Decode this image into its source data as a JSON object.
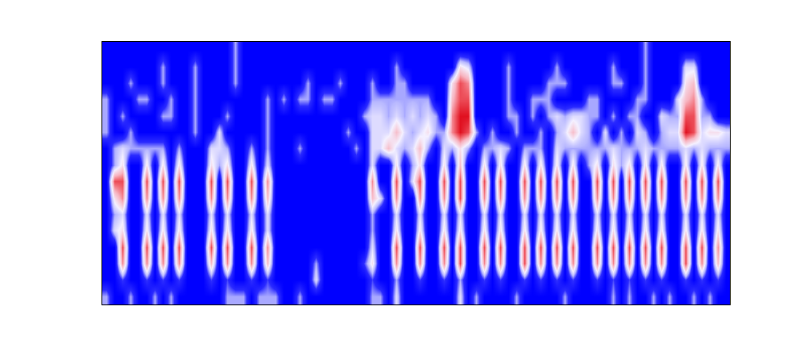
{
  "chart_data": {
    "type": "heatmap",
    "xlim": [
      0,
      78
    ],
    "ylim": [
      0,
      16
    ],
    "tick_labels": false,
    "grid": false,
    "color_range": [
      0,
      9
    ],
    "cells": [
      [
        3,
        0,
        0,
        3,
        0,
        0,
        3,
        0,
        3,
        0,
        0,
        0,
        0,
        0,
        0,
        3,
        3,
        3,
        0,
        3,
        3,
        3,
        0,
        0,
        3,
        0,
        0,
        0,
        0,
        0,
        0,
        0,
        0,
        3,
        3,
        0,
        4,
        0,
        0,
        0,
        0,
        0,
        0,
        0,
        4,
        0,
        3,
        0,
        0,
        0,
        0,
        3,
        0,
        0,
        0,
        0,
        0,
        3,
        0,
        0,
        0,
        0,
        0,
        3,
        0,
        3,
        0,
        0,
        3,
        0,
        3,
        0,
        0,
        3,
        0,
        3,
        0,
        0
      ],
      [
        0,
        0,
        2,
        0,
        0,
        2,
        0,
        2,
        0,
        2,
        0,
        0,
        0,
        2,
        0,
        2,
        0,
        0,
        2,
        0,
        2,
        0,
        0,
        0,
        0,
        0,
        4,
        0,
        0,
        0,
        0,
        0,
        0,
        2,
        0,
        0,
        3,
        0,
        0,
        2,
        0,
        0,
        2,
        0,
        3,
        0,
        0,
        2,
        0,
        2,
        0,
        0,
        2,
        0,
        2,
        0,
        2,
        0,
        2,
        0,
        0,
        2,
        0,
        2,
        0,
        2,
        0,
        2,
        0,
        2,
        0,
        0,
        2,
        0,
        2,
        0,
        2,
        0
      ],
      [
        0,
        0,
        7,
        0,
        0,
        7,
        0,
        7,
        0,
        7,
        0,
        0,
        0,
        6,
        0,
        7,
        0,
        0,
        7,
        0,
        6,
        0,
        0,
        0,
        0,
        0,
        3,
        0,
        0,
        0,
        0,
        0,
        2,
        5,
        0,
        0,
        7,
        0,
        0,
        7,
        0,
        0,
        7,
        0,
        8,
        0,
        0,
        7,
        0,
        7,
        0,
        0,
        8,
        0,
        7,
        0,
        7,
        0,
        7,
        0,
        0,
        7,
        0,
        7,
        0,
        7,
        0,
        7,
        0,
        7,
        0,
        0,
        8,
        0,
        7,
        0,
        6,
        0
      ],
      [
        0,
        0,
        8,
        0,
        0,
        8,
        0,
        8,
        0,
        8,
        0,
        0,
        0,
        8,
        0,
        8,
        0,
        0,
        8,
        0,
        7,
        0,
        0,
        0,
        0,
        0,
        0,
        0,
        0,
        0,
        0,
        0,
        0,
        4,
        0,
        0,
        8,
        0,
        0,
        8,
        0,
        0,
        8,
        0,
        8,
        0,
        0,
        8,
        0,
        8,
        0,
        0,
        8,
        0,
        8,
        0,
        8,
        0,
        8,
        0,
        0,
        8,
        0,
        8,
        0,
        8,
        0,
        8,
        0,
        8,
        0,
        0,
        8,
        0,
        8,
        0,
        7,
        0
      ],
      [
        0,
        4,
        5,
        0,
        0,
        5,
        0,
        5,
        0,
        5,
        0,
        0,
        0,
        5,
        0,
        5,
        0,
        0,
        5,
        0,
        4,
        0,
        0,
        0,
        0,
        0,
        0,
        0,
        0,
        0,
        0,
        0,
        0,
        3,
        0,
        0,
        5,
        0,
        0,
        5,
        0,
        0,
        5,
        0,
        5,
        0,
        0,
        5,
        0,
        5,
        0,
        0,
        5,
        0,
        5,
        0,
        5,
        0,
        5,
        0,
        0,
        5,
        0,
        5,
        0,
        5,
        0,
        5,
        0,
        5,
        0,
        0,
        5,
        0,
        5,
        0,
        5,
        0
      ],
      [
        0,
        3,
        4,
        0,
        0,
        4,
        0,
        4,
        0,
        4,
        0,
        0,
        0,
        4,
        0,
        4,
        0,
        0,
        4,
        0,
        4,
        0,
        0,
        0,
        0,
        0,
        0,
        0,
        0,
        0,
        0,
        0,
        0,
        3,
        0,
        0,
        4,
        0,
        0,
        4,
        0,
        0,
        4,
        0,
        4,
        0,
        0,
        4,
        0,
        4,
        0,
        0,
        4,
        0,
        4,
        0,
        4,
        0,
        4,
        0,
        0,
        4,
        0,
        4,
        0,
        4,
        0,
        4,
        0,
        4,
        0,
        0,
        4,
        0,
        4,
        0,
        4,
        0
      ],
      [
        0,
        5,
        7,
        0,
        0,
        7,
        0,
        7,
        0,
        7,
        0,
        0,
        0,
        7,
        0,
        7,
        0,
        0,
        7,
        0,
        6,
        0,
        0,
        0,
        0,
        0,
        0,
        0,
        0,
        0,
        0,
        0,
        0,
        6,
        4,
        0,
        7,
        0,
        0,
        7,
        0,
        0,
        7,
        0,
        8,
        0,
        0,
        7,
        0,
        7,
        0,
        0,
        7,
        0,
        7,
        0,
        7,
        0,
        7,
        0,
        0,
        7,
        0,
        7,
        0,
        7,
        0,
        7,
        0,
        7,
        0,
        0,
        7,
        0,
        7,
        0,
        7,
        0
      ],
      [
        0,
        8,
        8,
        0,
        0,
        8,
        0,
        8,
        0,
        8,
        0,
        0,
        0,
        8,
        0,
        8,
        0,
        0,
        8,
        0,
        7,
        0,
        0,
        0,
        0,
        0,
        0,
        0,
        0,
        0,
        0,
        0,
        0,
        7,
        0,
        0,
        8,
        0,
        4,
        8,
        0,
        0,
        8,
        0,
        8,
        0,
        0,
        8,
        0,
        8,
        0,
        0,
        8,
        0,
        8,
        0,
        8,
        0,
        8,
        0,
        0,
        8,
        0,
        8,
        0,
        8,
        0,
        8,
        0,
        8,
        0,
        0,
        8,
        0,
        8,
        0,
        8,
        0
      ],
      [
        0,
        3,
        5,
        0,
        0,
        5,
        0,
        5,
        0,
        5,
        0,
        0,
        0,
        5,
        3,
        5,
        0,
        0,
        5,
        0,
        4,
        0,
        0,
        0,
        0,
        0,
        0,
        0,
        0,
        0,
        0,
        0,
        0,
        4,
        0,
        0,
        5,
        0,
        3,
        5,
        0,
        0,
        5,
        0,
        6,
        0,
        0,
        5,
        0,
        5,
        0,
        0,
        5,
        0,
        5,
        0,
        5,
        0,
        5,
        0,
        3,
        5,
        0,
        5,
        3,
        5,
        0,
        5,
        0,
        5,
        0,
        0,
        5,
        0,
        5,
        0,
        5,
        0
      ],
      [
        0,
        3,
        4,
        3,
        3,
        3,
        3,
        3,
        0,
        3,
        0,
        0,
        0,
        4,
        4,
        3,
        0,
        0,
        3,
        0,
        3,
        0,
        0,
        0,
        3,
        0,
        0,
        0,
        0,
        0,
        0,
        3,
        0,
        4,
        4,
        6,
        4,
        3,
        4,
        6,
        3,
        0,
        4,
        3,
        5,
        3,
        0,
        3,
        3,
        4,
        3,
        0,
        3,
        3,
        3,
        0,
        4,
        3,
        3,
        3,
        3,
        3,
        3,
        4,
        3,
        3,
        3,
        4,
        3,
        3,
        3,
        3,
        4,
        3,
        4,
        3,
        3,
        3
      ],
      [
        3,
        0,
        0,
        3,
        0,
        0,
        0,
        0,
        0,
        0,
        0,
        3,
        0,
        0,
        4,
        0,
        0,
        0,
        0,
        0,
        3,
        0,
        0,
        0,
        0,
        0,
        0,
        0,
        0,
        0,
        3,
        0,
        0,
        4,
        4,
        4,
        6,
        4,
        3,
        4,
        5,
        3,
        3,
        7,
        9,
        8,
        3,
        0,
        3,
        0,
        0,
        3,
        0,
        0,
        3,
        0,
        3,
        4,
        6,
        4,
        3,
        0,
        4,
        0,
        3,
        0,
        4,
        3,
        0,
        3,
        4,
        4,
        9,
        8,
        4,
        5,
        5,
        4
      ],
      [
        3,
        0,
        3,
        0,
        0,
        0,
        0,
        3,
        3,
        0,
        0,
        3,
        0,
        0,
        0,
        3,
        0,
        0,
        0,
        0,
        3,
        0,
        0,
        0,
        0,
        0,
        0,
        0,
        0,
        0,
        0,
        0,
        3,
        4,
        4,
        3,
        4,
        3,
        4,
        3,
        4,
        3,
        0,
        7,
        9,
        9,
        0,
        0,
        0,
        0,
        3,
        3,
        0,
        3,
        0,
        3,
        4,
        3,
        4,
        4,
        3,
        3,
        0,
        3,
        0,
        3,
        3,
        0,
        0,
        4,
        3,
        3,
        8,
        8,
        3,
        3,
        0,
        0
      ],
      [
        3,
        0,
        0,
        0,
        3,
        3,
        0,
        0,
        3,
        0,
        0,
        3,
        0,
        0,
        0,
        0,
        0,
        0,
        0,
        0,
        3,
        0,
        3,
        0,
        3,
        3,
        0,
        3,
        3,
        0,
        0,
        0,
        0,
        3,
        3,
        3,
        3,
        3,
        3,
        3,
        3,
        0,
        0,
        6,
        8,
        8,
        0,
        0,
        0,
        0,
        3,
        0,
        0,
        3,
        3,
        3,
        0,
        0,
        0,
        0,
        3,
        3,
        0,
        0,
        0,
        0,
        3,
        3,
        0,
        0,
        0,
        4,
        6,
        7,
        3,
        0,
        0,
        0
      ],
      [
        0,
        0,
        0,
        3,
        0,
        0,
        0,
        3,
        0,
        0,
        0,
        3,
        0,
        0,
        0,
        0,
        3,
        0,
        0,
        0,
        0,
        0,
        0,
        0,
        0,
        3,
        0,
        0,
        0,
        3,
        0,
        0,
        0,
        3,
        0,
        0,
        3,
        3,
        0,
        0,
        0,
        0,
        0,
        5,
        8,
        7,
        0,
        0,
        0,
        0,
        3,
        0,
        0,
        0,
        0,
        3,
        3,
        3,
        0,
        0,
        0,
        0,
        0,
        3,
        3,
        0,
        0,
        3,
        0,
        0,
        0,
        0,
        5,
        6,
        0,
        0,
        0,
        0
      ],
      [
        0,
        0,
        0,
        0,
        0,
        0,
        0,
        3,
        0,
        0,
        0,
        3,
        0,
        0,
        0,
        0,
        3,
        0,
        0,
        0,
        0,
        0,
        0,
        0,
        0,
        0,
        0,
        0,
        0,
        0,
        0,
        0,
        0,
        0,
        0,
        0,
        3,
        0,
        0,
        0,
        0,
        0,
        0,
        0,
        5,
        4,
        0,
        0,
        0,
        0,
        3,
        0,
        0,
        0,
        0,
        0,
        3,
        0,
        0,
        0,
        0,
        0,
        0,
        3,
        0,
        0,
        0,
        3,
        0,
        0,
        0,
        0,
        4,
        4,
        0,
        0,
        0,
        0
      ],
      [
        0,
        0,
        0,
        0,
        0,
        0,
        0,
        0,
        0,
        0,
        0,
        0,
        0,
        0,
        0,
        0,
        3,
        0,
        0,
        0,
        0,
        0,
        0,
        0,
        0,
        0,
        0,
        0,
        0,
        0,
        0,
        0,
        0,
        0,
        0,
        0,
        0,
        0,
        0,
        0,
        0,
        0,
        0,
        0,
        0,
        0,
        0,
        0,
        0,
        0,
        0,
        0,
        0,
        0,
        0,
        0,
        0,
        0,
        0,
        0,
        0,
        0,
        0,
        0,
        0,
        0,
        0,
        3,
        0,
        0,
        0,
        0,
        0,
        0,
        0,
        0,
        0,
        0
      ]
    ]
  }
}
